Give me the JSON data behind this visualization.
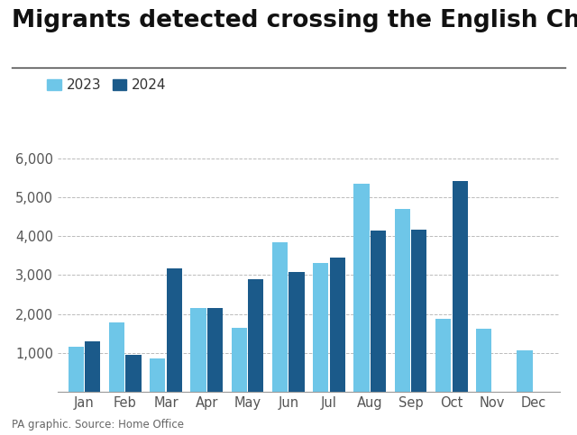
{
  "title": "Migrants detected crossing the English Channel",
  "months": [
    "Jan",
    "Feb",
    "Mar",
    "Apr",
    "May",
    "Jun",
    "Jul",
    "Aug",
    "Sep",
    "Oct",
    "Nov",
    "Dec"
  ],
  "values_2023": [
    1150,
    1780,
    850,
    2150,
    1650,
    3850,
    3300,
    5350,
    4700,
    1880,
    1620,
    1070
  ],
  "values_2024": [
    1300,
    950,
    3180,
    2150,
    2900,
    3080,
    3440,
    4150,
    4180,
    5420,
    null,
    null
  ],
  "color_2023": "#6ec6e8",
  "color_2024": "#1b5a8a",
  "ylim": [
    0,
    6500
  ],
  "yticks": [
    1000,
    2000,
    3000,
    4000,
    5000,
    6000
  ],
  "footnote": "PA graphic. Source: Home Office",
  "legend_labels": [
    "2023",
    "2024"
  ],
  "background_color": "#ffffff",
  "grid_color": "#bbbbbb",
  "title_fontsize": 19,
  "axis_fontsize": 10.5,
  "footnote_fontsize": 8.5
}
